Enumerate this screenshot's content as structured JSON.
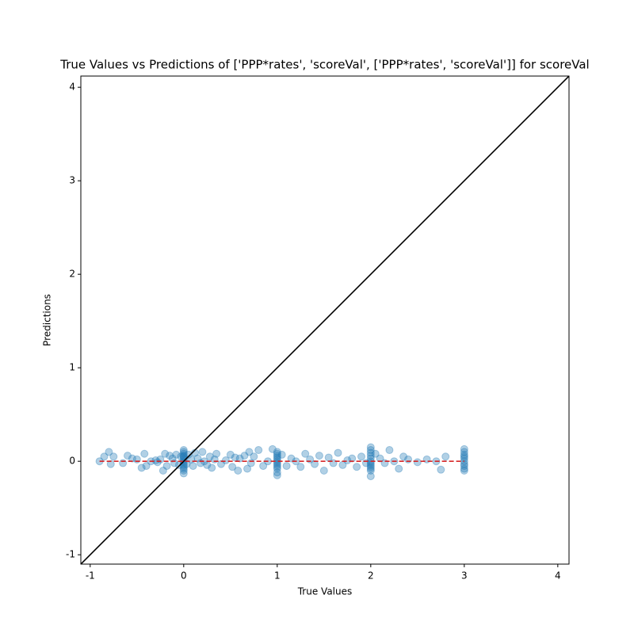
{
  "chart_data": {
    "type": "scatter",
    "title": "True Values vs Predictions of ['PPP*rates', 'scoreVal', ['PPP*rates', 'scoreVal']] for scoreVal",
    "x_label": "True Values",
    "y_label": "Predictions",
    "xlim": [
      -1.1,
      4.12
    ],
    "ylim": [
      -1.1,
      4.12
    ],
    "xticks": [
      -1,
      0,
      1,
      2,
      3,
      4
    ],
    "yticks": [
      -1,
      0,
      1,
      2,
      3,
      4
    ],
    "series": [
      {
        "color": "#1f77b4",
        "alpha": 0.35,
        "x": [
          -0.9,
          -0.85,
          -0.8,
          -0.78,
          -0.75,
          -0.65,
          -0.6,
          -0.55,
          -0.5,
          -0.45,
          -0.42,
          -0.4,
          -0.35,
          -0.3,
          -0.28,
          -0.25,
          -0.22,
          -0.2,
          -0.18,
          -0.15,
          -0.12,
          -0.1,
          -0.08,
          -0.05,
          -0.03,
          0,
          0,
          0,
          0,
          0,
          0,
          0,
          0,
          0,
          0,
          0,
          0,
          0,
          0,
          0.03,
          0.05,
          0.08,
          0.1,
          0.12,
          0.15,
          0.18,
          0.2,
          0.22,
          0.25,
          0.28,
          0.3,
          0.33,
          0.35,
          0.4,
          0.45,
          0.5,
          0.52,
          0.55,
          0.58,
          0.6,
          0.65,
          0.68,
          0.7,
          0.72,
          0.75,
          0.8,
          0.85,
          0.9,
          0.95,
          1,
          1,
          1,
          1,
          1,
          1,
          1,
          1,
          1,
          1,
          1,
          1,
          1.05,
          1.1,
          1.15,
          1.2,
          1.25,
          1.3,
          1.35,
          1.4,
          1.45,
          1.5,
          1.55,
          1.6,
          1.65,
          1.7,
          1.75,
          1.8,
          1.85,
          1.9,
          1.95,
          2,
          2,
          2,
          2,
          2,
          2,
          2,
          2,
          2,
          2,
          2,
          2,
          2.05,
          2.1,
          2.15,
          2.2,
          2.25,
          2.3,
          2.35,
          2.4,
          2.5,
          2.6,
          2.7,
          2.75,
          2.8,
          3,
          3,
          3,
          3,
          3,
          3,
          3,
          3,
          3,
          3
        ],
        "values": [
          0,
          0.05,
          0.1,
          -0.03,
          0.05,
          -0.02,
          0.06,
          0.03,
          0.02,
          -0.07,
          0.08,
          -0.05,
          0.0,
          0.01,
          -0.01,
          0.02,
          -0.1,
          0.08,
          -0.05,
          0.06,
          0.03,
          -0.02,
          0.07,
          -0.04,
          0.05,
          0.12,
          0.1,
          0.08,
          0.06,
          0.04,
          0.02,
          0.0,
          -0.02,
          -0.04,
          -0.06,
          -0.08,
          -0.1,
          -0.13,
          0.05,
          -0.03,
          0.07,
          0.02,
          -0.05,
          0.09,
          0.03,
          -0.02,
          0.1,
          0.0,
          -0.04,
          0.05,
          -0.07,
          0.02,
          0.08,
          -0.03,
          0.01,
          0.07,
          -0.06,
          0.04,
          -0.1,
          0.03,
          0.06,
          -0.08,
          0.1,
          -0.02,
          0.05,
          0.12,
          -0.05,
          0.0,
          0.13,
          0.1,
          0.08,
          0.06,
          0.04,
          0.02,
          0.0,
          -0.02,
          -0.04,
          -0.06,
          -0.08,
          -0.12,
          -0.15,
          0.07,
          -0.05,
          0.03,
          0.0,
          -0.06,
          0.08,
          0.02,
          -0.03,
          0.06,
          -0.1,
          0.04,
          -0.02,
          0.09,
          -0.04,
          0.01,
          0.03,
          -0.06,
          0.05,
          -0.02,
          0.15,
          0.12,
          0.09,
          0.06,
          0.03,
          0.0,
          -0.02,
          -0.04,
          -0.06,
          -0.08,
          -0.1,
          -0.16,
          0.08,
          0.03,
          -0.02,
          0.12,
          0.0,
          -0.08,
          0.05,
          0.02,
          -0.01,
          0.02,
          0.0,
          -0.09,
          0.05,
          0.13,
          0.1,
          0.07,
          0.05,
          0.03,
          0.0,
          -0.03,
          -0.05,
          -0.08,
          -0.1
        ]
      }
    ],
    "identity_line": {
      "color": "#000000"
    },
    "fit_line": {
      "x": [
        -0.9,
        3
      ],
      "y": [
        0,
        0
      ],
      "color": "#d62728"
    }
  }
}
